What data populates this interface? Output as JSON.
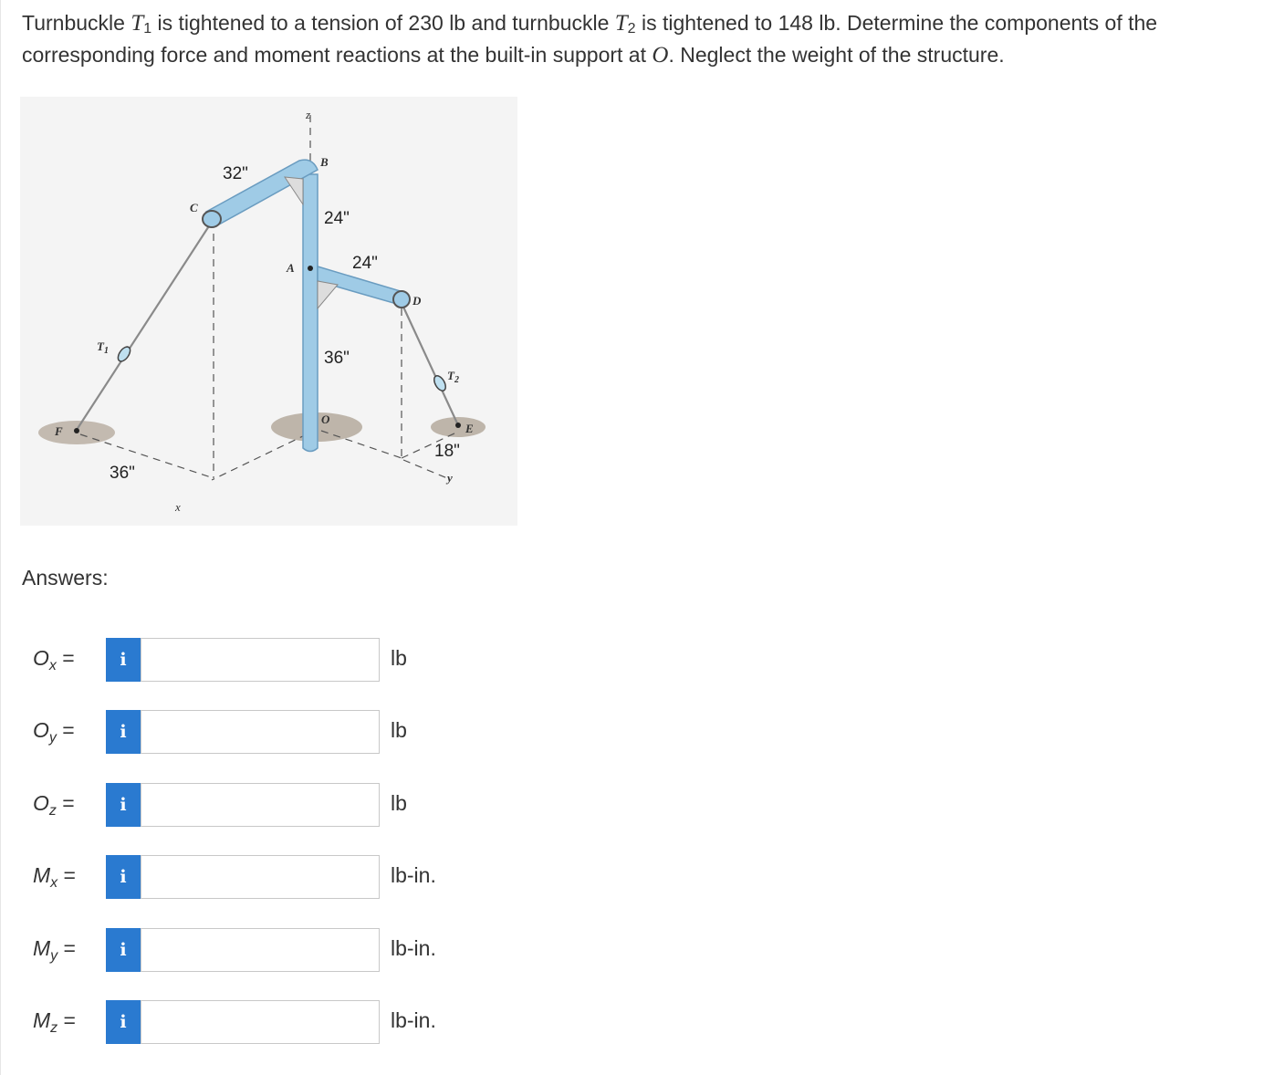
{
  "problem": {
    "part1": "Turnbuckle ",
    "t1_symbol": "T",
    "t1_sub": "1",
    "part2": " is tightened to a tension of 230 lb and turnbuckle ",
    "t2_symbol": "T",
    "t2_sub": "2",
    "part3": " is tightened to 148 lb. Determine the components of the corresponding force and moment reactions at the built-in support at ",
    "o_symbol": "O",
    "part4": ". Neglect the weight of the structure."
  },
  "figure": {
    "dims": {
      "d32": "32\"",
      "d24a": "24\"",
      "d24b": "24\"",
      "d36a": "36\"",
      "d36b": "36\"",
      "d18": "18\""
    },
    "points": {
      "z": "z",
      "b": "B",
      "c": "C",
      "a": "A",
      "d": "D",
      "t1": "T",
      "t1_sub": "1",
      "t2": "T",
      "t2_sub": "2",
      "f": "F",
      "o": "O",
      "e": "E",
      "x": "x",
      "y": "y"
    },
    "colors": {
      "pipe": "#9fcbe6",
      "pipe_edge": "#6a9cc0",
      "ground": "#9a8a78",
      "cable": "#8a8a8a",
      "bg": "#f2f2f2"
    }
  },
  "answers_heading": "Answers:",
  "info_label": "i",
  "answers": [
    {
      "sym": "O",
      "sub": "x",
      "eq": " =",
      "unit": "lb",
      "value": ""
    },
    {
      "sym": "O",
      "sub": "y",
      "eq": " =",
      "unit": "lb",
      "value": ""
    },
    {
      "sym": "O",
      "sub": "z",
      "eq": " =",
      "unit": "lb",
      "value": ""
    },
    {
      "sym": "M",
      "sub": "x",
      "eq": " =",
      "unit": "lb-in.",
      "value": ""
    },
    {
      "sym": "M",
      "sub": "y",
      "eq": " =",
      "unit": "lb-in.",
      "value": ""
    },
    {
      "sym": "M",
      "sub": "z",
      "eq": " =",
      "unit": "lb-in.",
      "value": ""
    }
  ]
}
